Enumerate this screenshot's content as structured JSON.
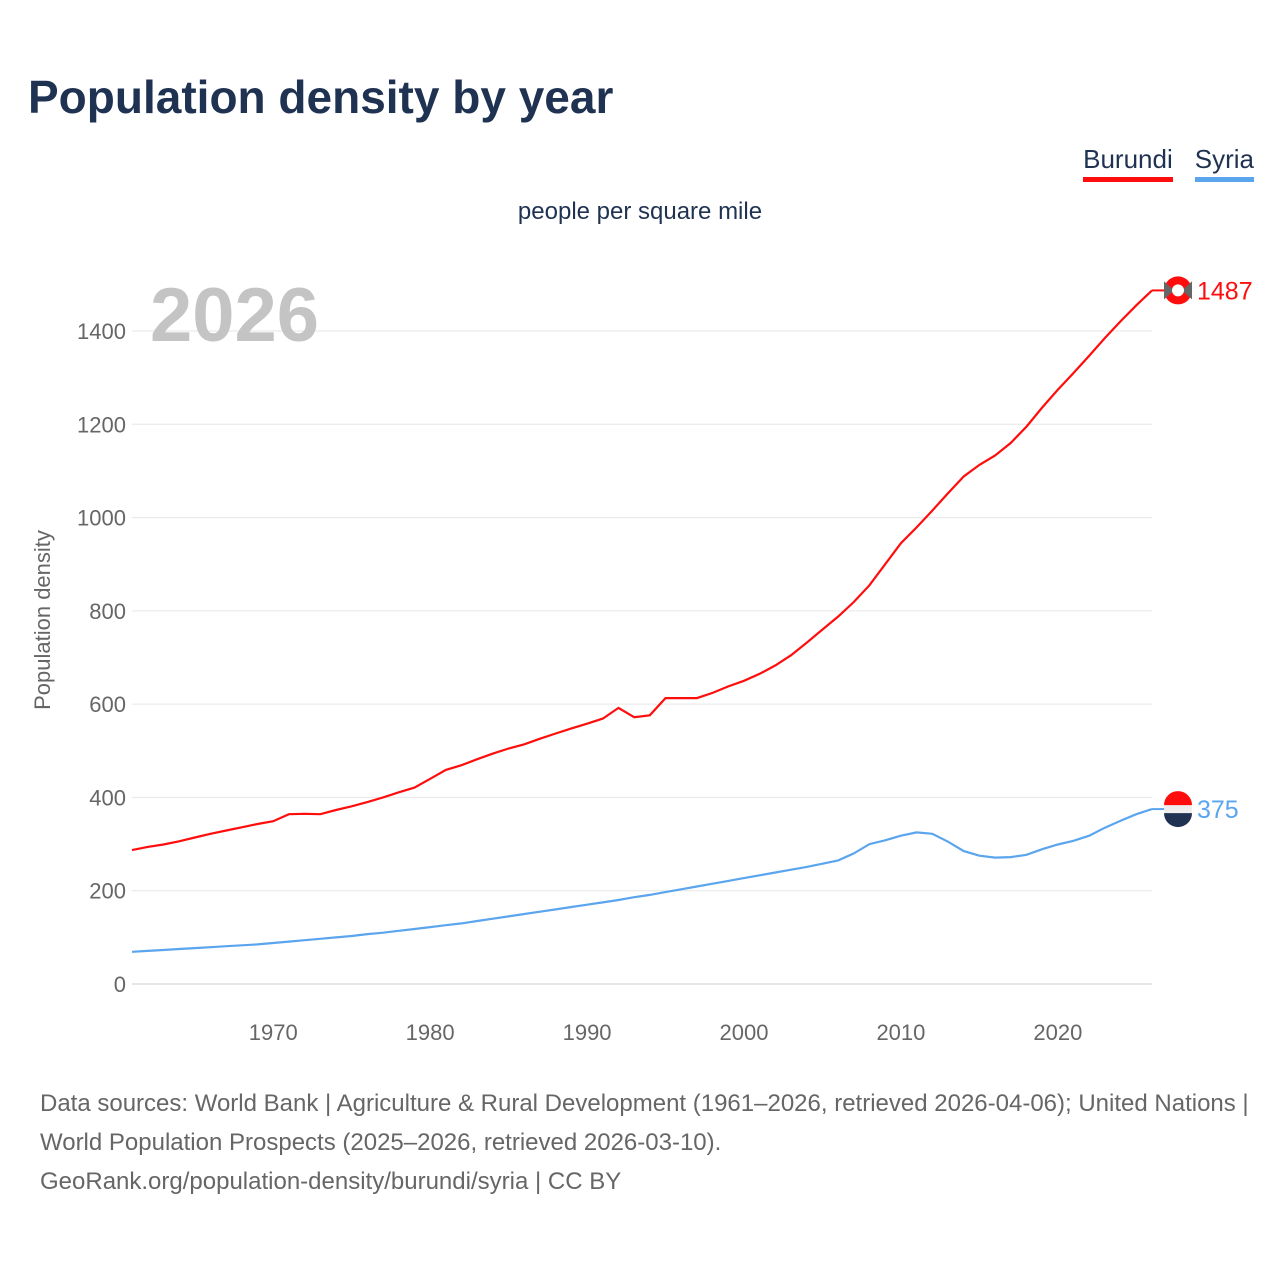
{
  "title": "Population density by year",
  "subtitle": "people per square mile",
  "year_label": "2026",
  "legend": [
    {
      "label": "Burundi",
      "color": "#ff0d0d"
    },
    {
      "label": "Syria",
      "color": "#5aa5ee"
    }
  ],
  "source": {
    "line1": "Data sources: World Bank | Agriculture & Rural Development (1961–2026, retrieved 2026-04-06); United Nations | World Population Prospects (2025–2026, retrieved 2026-03-10).",
    "line2": "GeoRank.org/population-density/burundi/syria | CC BY"
  },
  "chart_data": {
    "type": "line",
    "title": "Population density by year",
    "xlabel": "",
    "ylabel": "Population density",
    "xlim": [
      1961,
      2026
    ],
    "ylim": [
      0,
      1500
    ],
    "xticks": [
      1970,
      1980,
      1990,
      2000,
      2010,
      2020
    ],
    "yticks": [
      0,
      200,
      400,
      600,
      800,
      1000,
      1200,
      1400
    ],
    "grid": true,
    "legend_position": "top-right",
    "x": [
      1961,
      1962,
      1963,
      1964,
      1965,
      1966,
      1967,
      1968,
      1969,
      1970,
      1971,
      1972,
      1973,
      1974,
      1975,
      1976,
      1977,
      1978,
      1979,
      1980,
      1981,
      1982,
      1983,
      1984,
      1985,
      1986,
      1987,
      1988,
      1989,
      1990,
      1991,
      1992,
      1993,
      1994,
      1995,
      1996,
      1997,
      1998,
      1999,
      2000,
      2001,
      2002,
      2003,
      2004,
      2005,
      2006,
      2007,
      2008,
      2009,
      2010,
      2011,
      2012,
      2013,
      2014,
      2015,
      2016,
      2017,
      2018,
      2019,
      2020,
      2021,
      2022,
      2023,
      2024,
      2025,
      2026
    ],
    "series": [
      {
        "name": "Burundi",
        "color": "#ff0d0d",
        "end_label": "1487",
        "values": [
          287,
          294,
          299,
          306,
          314,
          322,
          329,
          336,
          343,
          349,
          364,
          365,
          364,
          373,
          381,
          390,
          400,
          411,
          421,
          440,
          459,
          469,
          482,
          494,
          505,
          514,
          526,
          537,
          548,
          558,
          569,
          592,
          572,
          576,
          613,
          613,
          613,
          624,
          638,
          650,
          665,
          683,
          705,
          732,
          760,
          788,
          819,
          855,
          900,
          945,
          979,
          1015,
          1052,
          1088,
          1113,
          1133,
          1160,
          1195,
          1236,
          1274,
          1310,
          1347,
          1385,
          1421,
          1455,
          1487
        ]
      },
      {
        "name": "Syria",
        "color": "#5aa5ee",
        "end_label": "375",
        "values": [
          69,
          71,
          73,
          75,
          77,
          79,
          81,
          83,
          85,
          88,
          91,
          94,
          97,
          100,
          103,
          107,
          110,
          114,
          118,
          122,
          126,
          130,
          135,
          140,
          145,
          150,
          155,
          160,
          165,
          170,
          175,
          180,
          186,
          191,
          197,
          203,
          209,
          215,
          221,
          227,
          233,
          239,
          245,
          251,
          258,
          265,
          280,
          300,
          308,
          318,
          325,
          322,
          305,
          285,
          275,
          271,
          272,
          277,
          289,
          299,
          307,
          318,
          335,
          350,
          364,
          375
        ]
      }
    ]
  }
}
